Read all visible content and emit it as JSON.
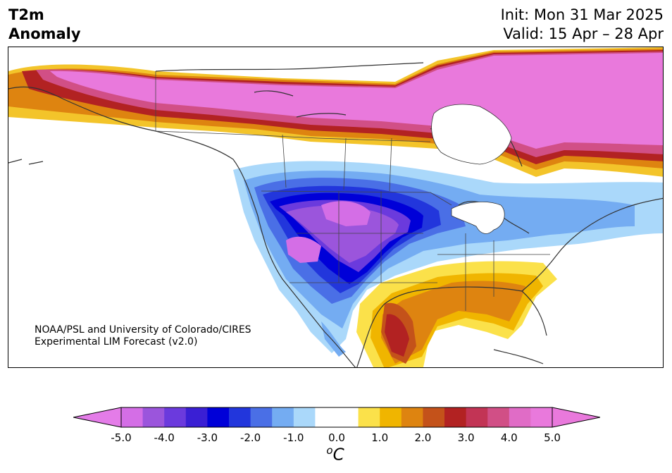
{
  "title": {
    "line1": "T2m",
    "line2": "Anomaly"
  },
  "forecast": {
    "init": "Init: Mon 31 Mar 2025",
    "valid": "Valid: 15 Apr – 28 Apr"
  },
  "credit": {
    "line1": "NOAA/PSL and University of Colorado/CIRES",
    "line2": "Experimental LIM Forecast (v2.0)"
  },
  "colorbar": {
    "tick_labels": [
      "-5.0",
      "-4.0",
      "-3.0",
      "-2.0",
      "-1.0",
      "0.0",
      "1.0",
      "2.0",
      "3.0",
      "4.0",
      "5.0"
    ],
    "unit_base": "C",
    "unit_sup": "o",
    "levels": [
      -5.0,
      -4.5,
      -4.0,
      -3.5,
      -3.0,
      -2.5,
      -2.0,
      -1.5,
      -1.0,
      -0.5,
      0.5,
      1.0,
      1.5,
      2.0,
      2.5,
      3.0,
      3.5,
      4.0,
      4.5,
      5.0
    ],
    "colors": [
      "#d46ee6",
      "#9b55dc",
      "#6b3add",
      "#3a1fd4",
      "#0000d8",
      "#2236dc",
      "#4a6fe6",
      "#74acf2",
      "#aad8fa",
      "#ffffff",
      "#ffffff",
      "#fbe14a",
      "#f0b500",
      "#de8410",
      "#c4521a",
      "#b22222",
      "#c23455",
      "#d14f86",
      "#e06cc6",
      "#e979dc"
    ],
    "under_color": "#e47ce8",
    "over_color": "#e979dc"
  }
}
